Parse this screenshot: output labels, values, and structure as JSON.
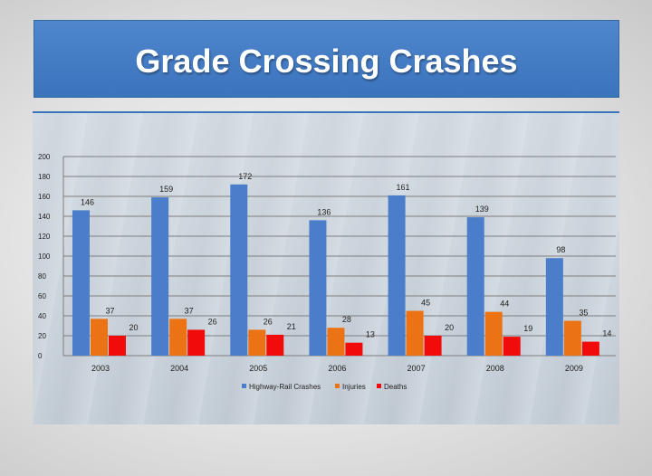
{
  "title": "Grade Crossing Crashes",
  "colors": {
    "title_bar": "#3f78c3",
    "series": [
      "#4a7ecb",
      "#ec7314",
      "#f20b0b"
    ]
  },
  "chart_data": {
    "type": "bar",
    "title": "Grade Crossing Crashes",
    "categories": [
      "2003",
      "2004",
      "2005",
      "2006",
      "2007",
      "2008",
      "2009"
    ],
    "series": [
      {
        "name": "Highway-Rail Crashes",
        "color": "#4a7ecb",
        "values": [
          146,
          159,
          172,
          136,
          161,
          139,
          98
        ]
      },
      {
        "name": "Injuries",
        "color": "#ec7314",
        "values": [
          37,
          37,
          26,
          28,
          45,
          44,
          35
        ]
      },
      {
        "name": "Deaths",
        "color": "#f20b0b",
        "values": [
          20,
          26,
          21,
          13,
          20,
          19,
          14
        ]
      }
    ],
    "y_ticks": [
      0,
      20,
      40,
      60,
      80,
      100,
      120,
      140,
      160,
      180,
      200
    ],
    "ylim": [
      0,
      200
    ],
    "grid": true,
    "legend": "bottom",
    "data_labels": true
  }
}
